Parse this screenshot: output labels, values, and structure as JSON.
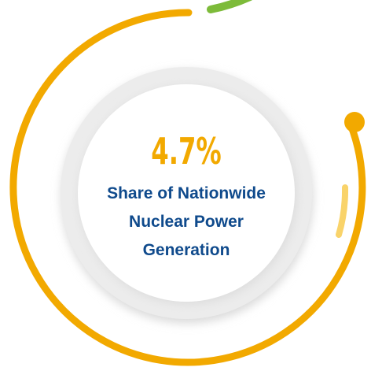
{
  "stat": {
    "value": "4.7%",
    "label_lines": [
      "Share of Nationwide",
      "Nuclear Power",
      "Generation"
    ]
  }
}
